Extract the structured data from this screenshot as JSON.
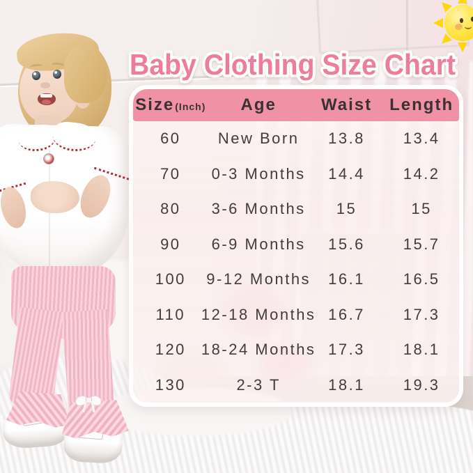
{
  "page": {
    "title": "Baby Clothing Size Chart"
  },
  "chart_data": {
    "type": "table",
    "title": "Baby Clothing Size Chart",
    "unit": "Inch",
    "columns": [
      "Size(Inch)",
      "Age",
      "Waist",
      "Length"
    ],
    "header": {
      "size_label": "Size",
      "size_unit": "(Inch)",
      "age_label": "Age",
      "waist_label": "Waist",
      "length_label": "Length"
    },
    "rows": [
      {
        "size": "60",
        "age": "New Born",
        "waist": "13.8",
        "length": "13.4"
      },
      {
        "size": "70",
        "age": "0-3 Months",
        "waist": "14.4",
        "length": "14.2"
      },
      {
        "size": "80",
        "age": "3-6 Months",
        "waist": "15",
        "length": "15"
      },
      {
        "size": "90",
        "age": "6-9 Months",
        "waist": "15.6",
        "length": "15.7"
      },
      {
        "size": "100",
        "age": "9-12 Months",
        "waist": "16.1",
        "length": "16.5"
      },
      {
        "size": "110",
        "age": "12-18 Months",
        "waist": "16.7",
        "length": "17.3"
      },
      {
        "size": "120",
        "age": "18-24 Months",
        "waist": "17.3",
        "length": "18.1"
      },
      {
        "size": "130",
        "age": "2-3 T",
        "waist": "18.1",
        "length": "19.3"
      }
    ]
  },
  "icons": {
    "sun": "sun-icon"
  },
  "colors": {
    "title_pink": "#ee7d9c",
    "header_pink": "#f091a5",
    "table_text": "#433c3c",
    "pants_pink": "#f7c9d6",
    "sun_yellow": "#ffd81e"
  }
}
